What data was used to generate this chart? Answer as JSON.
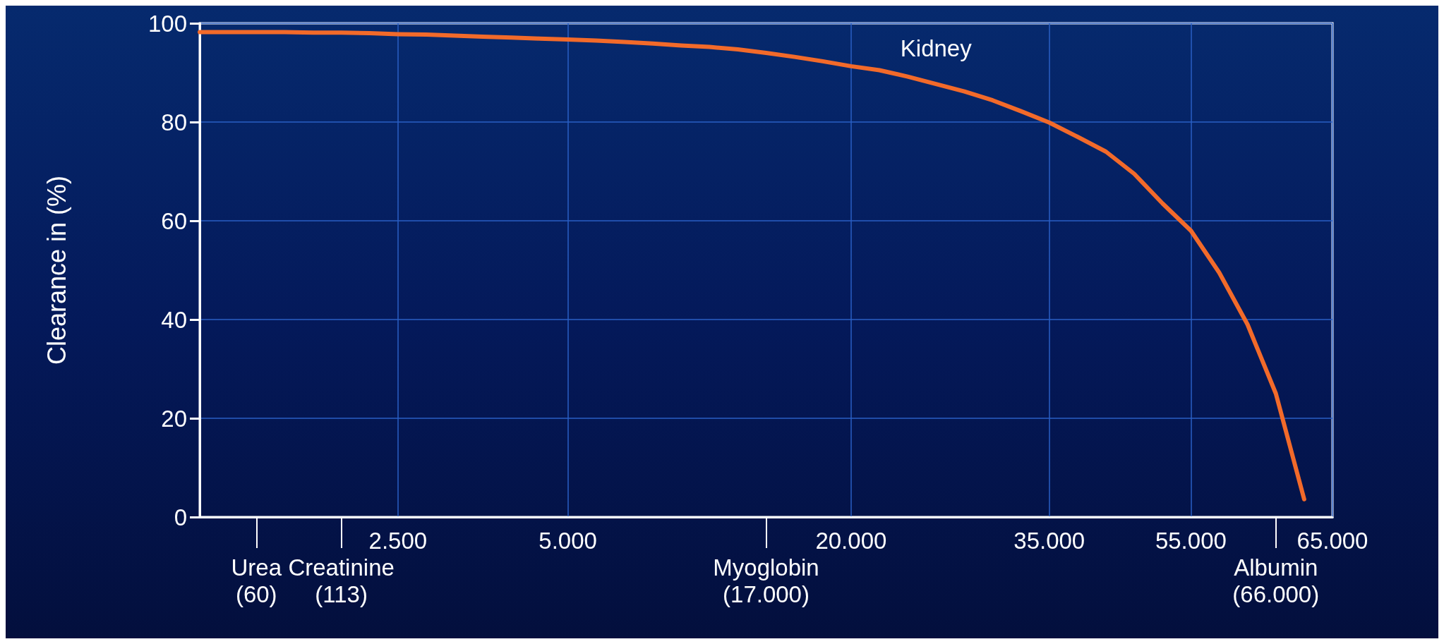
{
  "chart_data": {
    "type": "line",
    "ylabel": "Clearance in (%)",
    "categories": [
      null,
      null,
      "Urea\n(60)",
      null,
      null,
      "Creatinine\n(113)",
      null,
      "2.500",
      null,
      null,
      null,
      null,
      null,
      "5.000",
      null,
      null,
      null,
      null,
      null,
      null,
      "Myoglobin\n(17.000)",
      null,
      null,
      "20.000",
      null,
      null,
      null,
      null,
      null,
      null,
      "35.000",
      null,
      null,
      null,
      null,
      "55.000",
      null,
      null,
      "Albumin\n(66.000)",
      null,
      "65.000"
    ],
    "ylim": [
      0,
      100
    ],
    "yticks": [
      0,
      20,
      40,
      60,
      80,
      100
    ],
    "series": [
      {
        "name": "Kidney",
        "color": "#f26a2a",
        "values": [
          98.2,
          98.2,
          98.2,
          98.2,
          98.1,
          98.1,
          98.0,
          97.8,
          97.7,
          97.5,
          97.3,
          97.1,
          96.9,
          96.7,
          96.5,
          96.2,
          95.9,
          95.5,
          95.2,
          94.7,
          94.0,
          93.2,
          92.3,
          91.3,
          90.5,
          89.2,
          87.7,
          86.2,
          84.4,
          82.2,
          79.9,
          77.0,
          74.0,
          69.5,
          63.5,
          58.0,
          49.5,
          39.0,
          25.0,
          3.6,
          null
        ]
      }
    ],
    "grid": true,
    "legend": false,
    "marker": "none",
    "line_style": "solid"
  }
}
